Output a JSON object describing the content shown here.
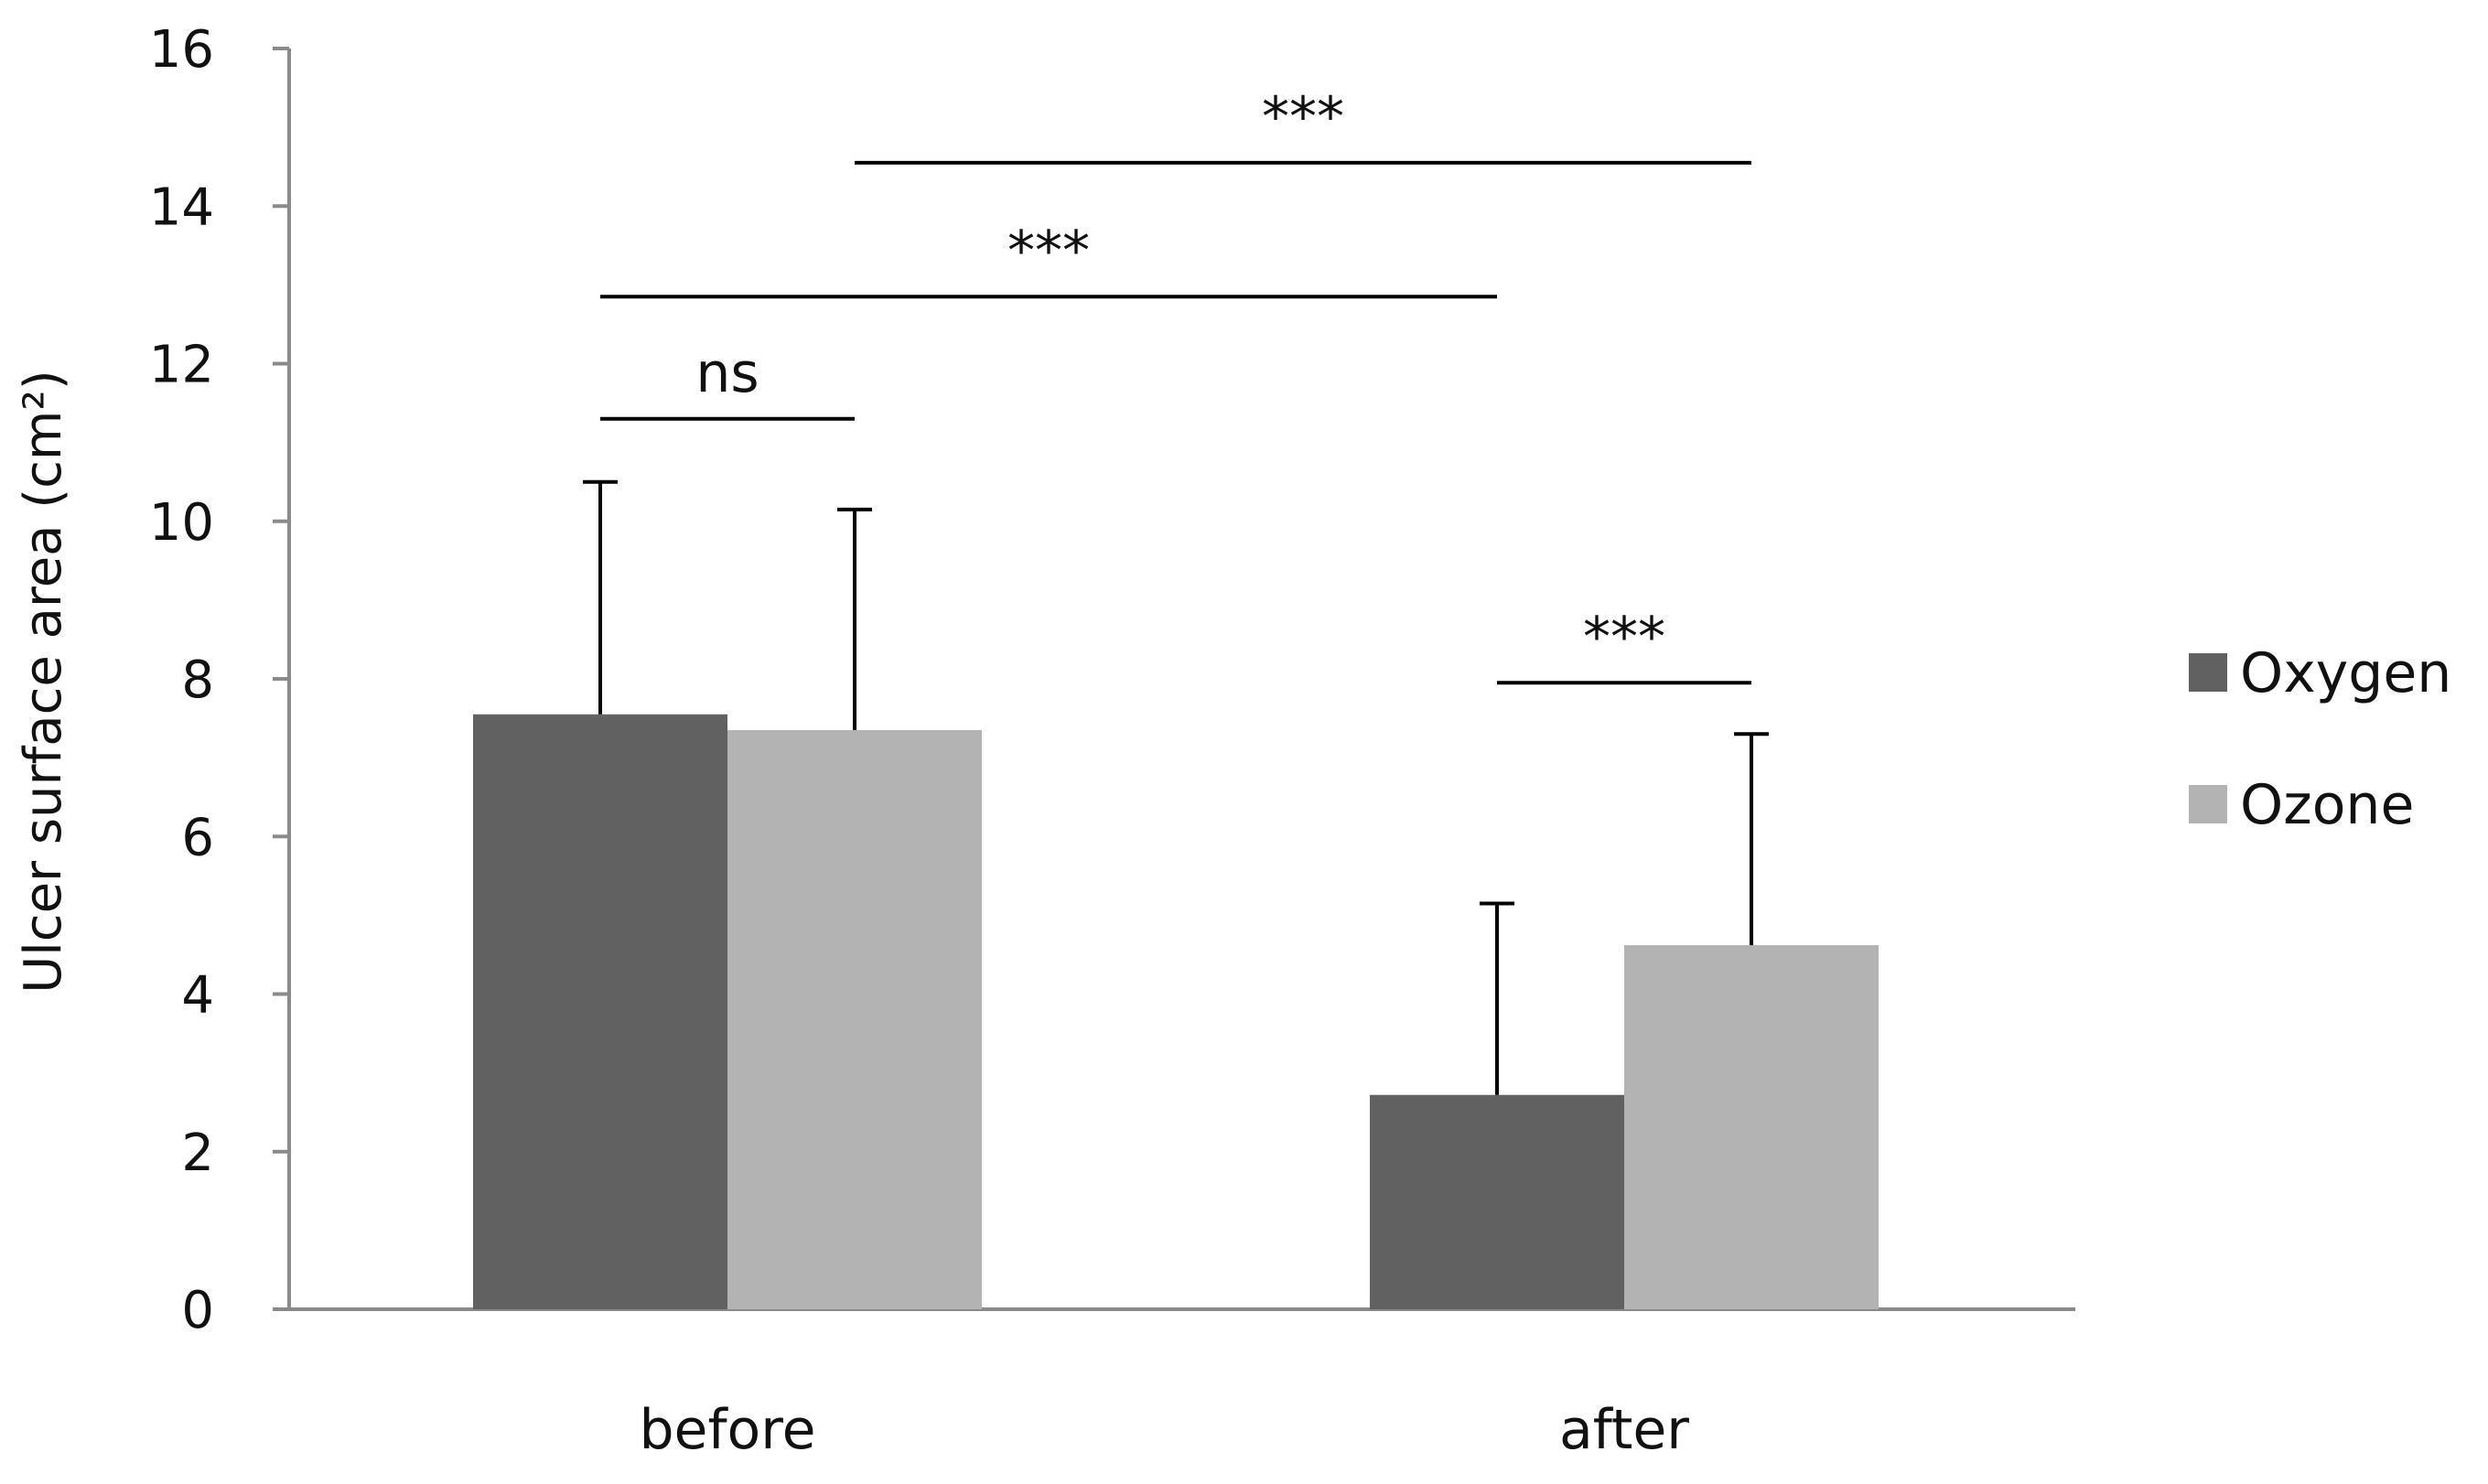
{
  "chart_data": {
    "type": "bar",
    "title": "",
    "xlabel": "",
    "ylabel": "Ulcer surface area (cm²)",
    "ylim": [
      0,
      16
    ],
    "yticks": [
      0,
      2,
      4,
      6,
      8,
      10,
      12,
      14,
      16
    ],
    "grid": false,
    "legend_position": "right",
    "categories": [
      "before",
      "after"
    ],
    "series": [
      {
        "name": "Oxygen",
        "color": "#616161",
        "values": [
          7.55,
          2.72
        ],
        "error_upper": [
          10.5,
          5.15
        ]
      },
      {
        "name": "Ozone",
        "color": "#b3b3b3",
        "values": [
          7.35,
          4.62
        ],
        "error_upper": [
          10.15,
          7.3
        ]
      }
    ],
    "annotations": [
      {
        "label": "ns",
        "from": {
          "category": 0,
          "series": 0
        },
        "to": {
          "category": 0,
          "series": 1
        },
        "y": 11.3
      },
      {
        "label": "***",
        "from": {
          "category": 0,
          "series": 0
        },
        "to": {
          "category": 1,
          "series": 0
        },
        "y": 12.85
      },
      {
        "label": "***",
        "from": {
          "category": 0,
          "series": 1
        },
        "to": {
          "category": 1,
          "series": 1
        },
        "y": 14.55
      },
      {
        "label": "***",
        "from": {
          "category": 1,
          "series": 0
        },
        "to": {
          "category": 1,
          "series": 1
        },
        "y": 7.95
      }
    ]
  }
}
